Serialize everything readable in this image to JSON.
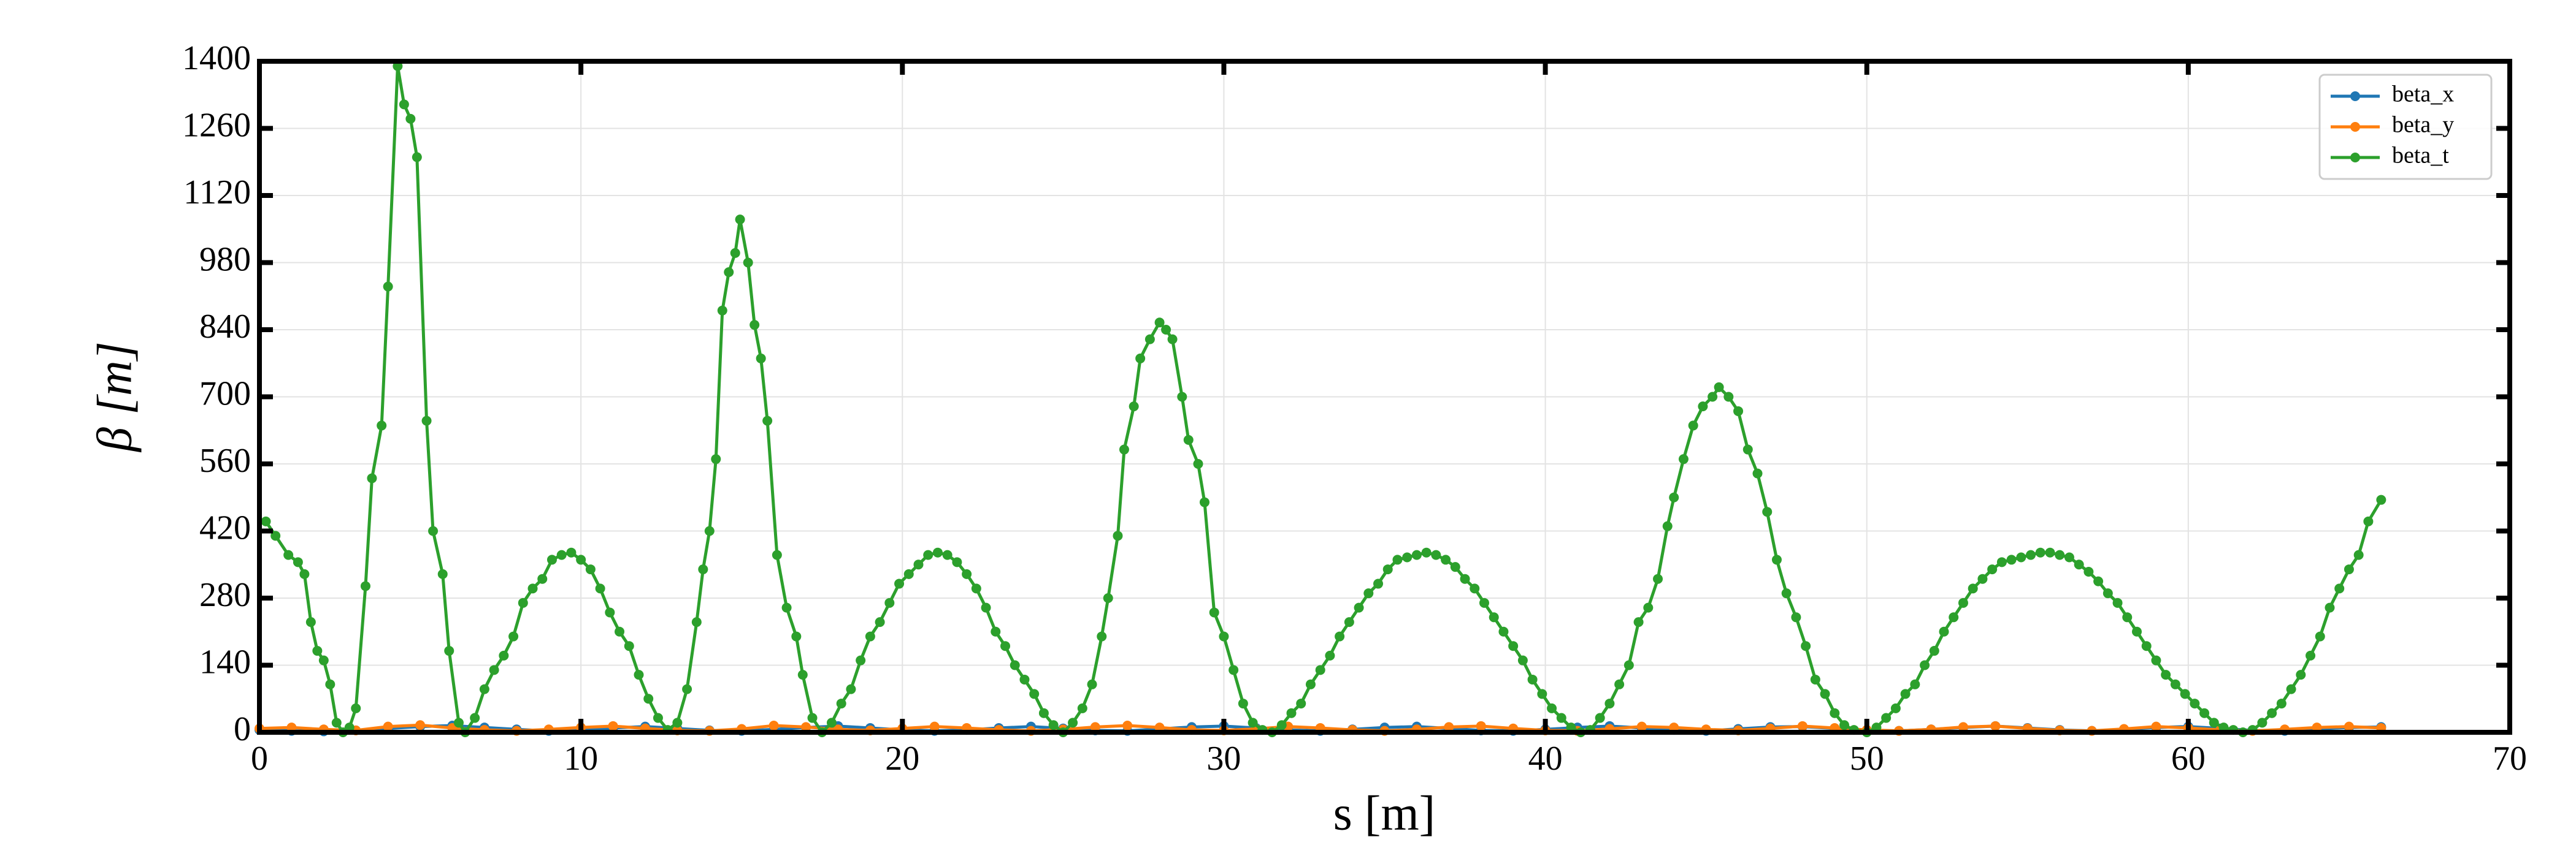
{
  "chart_data": {
    "type": "line",
    "xlabel": "s [m]",
    "ylabel": "β [m]",
    "xlim": [
      0,
      70
    ],
    "ylim": [
      0,
      1400
    ],
    "xticks": [
      0,
      10,
      20,
      30,
      40,
      50,
      60,
      70
    ],
    "yticks": [
      0,
      140,
      280,
      420,
      560,
      700,
      840,
      980,
      1120,
      1260,
      1400
    ],
    "grid": true,
    "legend": "upper right",
    "series": [
      {
        "name": "beta_x",
        "color": "#1f77b4",
        "x": [
          0,
          1,
          2,
          3,
          4,
          5,
          6,
          7,
          8,
          9,
          10,
          11,
          12,
          13,
          14,
          15,
          16,
          17,
          18,
          19,
          20,
          21,
          22,
          23,
          24,
          25,
          26,
          27,
          28,
          29,
          30,
          31,
          32,
          33,
          34,
          35,
          36,
          37,
          38,
          39,
          40,
          41,
          42,
          43,
          44,
          45,
          46,
          47,
          48,
          49,
          50,
          51,
          52,
          53,
          54,
          55,
          56,
          57,
          58,
          59,
          60,
          61,
          62,
          63,
          64,
          65,
          66
        ],
        "values": [
          5,
          3,
          2,
          4,
          8,
          12,
          14,
          10,
          6,
          3,
          5,
          9,
          12,
          8,
          4,
          3,
          6,
          10,
          13,
          9,
          5,
          3,
          5,
          9,
          12,
          8,
          4,
          3,
          7,
          11,
          13,
          9,
          5,
          3,
          6,
          10,
          12,
          8,
          4,
          3,
          6,
          10,
          13,
          9,
          5,
          3,
          7,
          11,
          12,
          8,
          4,
          3,
          6,
          10,
          13,
          9,
          5,
          3,
          6,
          10,
          12,
          8,
          4,
          3,
          7,
          10,
          11
        ]
      },
      {
        "name": "beta_y",
        "color": "#ff7f0e",
        "x": [
          0,
          1,
          2,
          3,
          4,
          5,
          6,
          7,
          8,
          9,
          10,
          11,
          12,
          13,
          14,
          15,
          16,
          17,
          18,
          19,
          20,
          21,
          22,
          23,
          24,
          25,
          26,
          27,
          28,
          29,
          30,
          31,
          32,
          33,
          34,
          35,
          36,
          37,
          38,
          39,
          40,
          41,
          42,
          43,
          44,
          45,
          46,
          47,
          48,
          49,
          50,
          51,
          52,
          53,
          54,
          55,
          56,
          57,
          58,
          59,
          60,
          61,
          62,
          63,
          64,
          65,
          66
        ],
        "values": [
          8,
          10,
          6,
          4,
          12,
          15,
          9,
          5,
          3,
          6,
          10,
          13,
          8,
          4,
          3,
          7,
          14,
          11,
          6,
          4,
          8,
          12,
          9,
          5,
          3,
          6,
          11,
          14,
          10,
          5,
          4,
          7,
          12,
          9,
          5,
          3,
          6,
          11,
          13,
          8,
          4,
          3,
          7,
          12,
          10,
          6,
          4,
          8,
          13,
          9,
          5,
          3,
          6,
          11,
          13,
          8,
          4,
          3,
          7,
          12,
          9,
          5,
          3,
          6,
          10,
          12,
          9
        ]
      },
      {
        "name": "beta_t",
        "color": "#2ca02c",
        "x": [
          0.2,
          0.5,
          0.9,
          1.2,
          1.4,
          1.6,
          1.8,
          2.0,
          2.2,
          2.4,
          2.6,
          2.8,
          3.0,
          3.3,
          3.5,
          3.8,
          4.0,
          4.3,
          4.5,
          4.7,
          4.9,
          5.2,
          5.4,
          5.7,
          5.9,
          6.2,
          6.4,
          6.7,
          7.0,
          7.3,
          7.6,
          7.9,
          8.2,
          8.5,
          8.8,
          9.1,
          9.4,
          9.7,
          10.0,
          10.3,
          10.6,
          10.9,
          11.2,
          11.5,
          11.8,
          12.1,
          12.4,
          12.7,
          13.0,
          13.3,
          13.6,
          13.8,
          14.0,
          14.2,
          14.4,
          14.6,
          14.8,
          14.95,
          15.2,
          15.4,
          15.6,
          15.8,
          16.1,
          16.4,
          16.7,
          16.9,
          17.2,
          17.5,
          17.8,
          18.1,
          18.4,
          18.7,
          19.0,
          19.3,
          19.6,
          19.9,
          20.2,
          20.5,
          20.8,
          21.1,
          21.4,
          21.7,
          22.0,
          22.3,
          22.6,
          22.9,
          23.2,
          23.5,
          23.8,
          24.1,
          24.4,
          24.7,
          25.0,
          25.3,
          25.6,
          25.9,
          26.2,
          26.4,
          26.7,
          26.9,
          27.2,
          27.4,
          27.7,
          28.0,
          28.2,
          28.4,
          28.7,
          28.9,
          29.2,
          29.4,
          29.7,
          30.0,
          30.3,
          30.6,
          30.9,
          31.2,
          31.5,
          31.8,
          32.1,
          32.4,
          32.7,
          33.0,
          33.3,
          33.6,
          33.9,
          34.2,
          34.5,
          34.8,
          35.1,
          35.4,
          35.7,
          36.0,
          36.3,
          36.6,
          36.9,
          37.2,
          37.5,
          37.8,
          38.1,
          38.4,
          38.7,
          39.0,
          39.3,
          39.6,
          39.9,
          40.2,
          40.5,
          40.8,
          41.1,
          41.4,
          41.7,
          42.0,
          42.3,
          42.6,
          42.9,
          43.2,
          43.5,
          43.8,
          44.0,
          44.3,
          44.6,
          44.9,
          45.2,
          45.4,
          45.7,
          46.0,
          46.3,
          46.6,
          46.9,
          47.2,
          47.5,
          47.8,
          48.1,
          48.4,
          48.7,
          49.0,
          49.3,
          49.6,
          50.0,
          50.3,
          50.6,
          50.9,
          51.2,
          51.5,
          51.8,
          52.1,
          52.4,
          52.7,
          53.0,
          53.3,
          53.6,
          53.9,
          54.2,
          54.5,
          54.8,
          55.1,
          55.4,
          55.7,
          56.0,
          56.3,
          56.6,
          56.9,
          57.2,
          57.5,
          57.8,
          58.1,
          58.4,
          58.7,
          59.0,
          59.3,
          59.6,
          59.9,
          60.2,
          60.5,
          60.8,
          61.1,
          61.4,
          61.7,
          62.0,
          62.3,
          62.6,
          62.9,
          63.2,
          63.5,
          63.8,
          64.1,
          64.4,
          64.7,
          65.0,
          65.3,
          65.6,
          66.0
        ],
        "values": [
          440,
          410,
          370,
          355,
          330,
          230,
          170,
          150,
          100,
          20,
          0,
          10,
          50,
          305,
          530,
          640,
          930,
          1390,
          1310,
          1280,
          1200,
          650,
          420,
          330,
          170,
          20,
          0,
          30,
          90,
          130,
          160,
          200,
          270,
          300,
          320,
          360,
          370,
          375,
          360,
          340,
          300,
          250,
          210,
          180,
          120,
          70,
          30,
          5,
          20,
          90,
          230,
          340,
          420,
          570,
          880,
          960,
          1000,
          1070,
          980,
          850,
          780,
          650,
          370,
          260,
          200,
          120,
          30,
          0,
          20,
          60,
          90,
          150,
          200,
          230,
          270,
          310,
          330,
          350,
          370,
          375,
          370,
          355,
          330,
          300,
          260,
          210,
          180,
          140,
          110,
          80,
          40,
          15,
          0,
          20,
          50,
          100,
          200,
          280,
          410,
          590,
          680,
          780,
          820,
          855,
          840,
          820,
          700,
          610,
          560,
          480,
          250,
          200,
          130,
          60,
          20,
          5,
          0,
          15,
          40,
          60,
          100,
          130,
          160,
          200,
          230,
          260,
          290,
          310,
          340,
          360,
          365,
          370,
          375,
          370,
          360,
          345,
          320,
          300,
          270,
          240,
          210,
          180,
          150,
          110,
          80,
          50,
          30,
          10,
          0,
          5,
          30,
          60,
          100,
          140,
          230,
          260,
          320,
          430,
          490,
          570,
          640,
          680,
          700,
          720,
          700,
          670,
          590,
          540,
          460,
          360,
          290,
          240,
          180,
          110,
          80,
          40,
          15,
          5,
          0,
          10,
          30,
          50,
          80,
          100,
          140,
          170,
          210,
          240,
          270,
          300,
          320,
          340,
          355,
          360,
          365,
          370,
          375,
          375,
          370,
          365,
          350,
          335,
          315,
          290,
          270,
          240,
          210,
          180,
          150,
          120,
          100,
          80,
          60,
          40,
          20,
          10,
          5,
          0,
          5,
          20,
          40,
          60,
          90,
          120,
          160,
          200,
          260,
          300,
          340,
          370,
          440,
          485
        ]
      }
    ]
  }
}
